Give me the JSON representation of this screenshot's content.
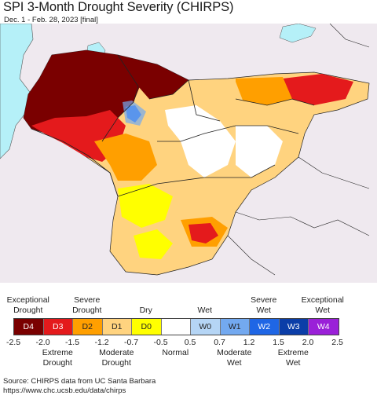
{
  "title": "SPI 3-Month Drought Severity (CHIRPS)",
  "subtitle": "Dec. 1 - Feb. 28, 2023 [final]",
  "legend": {
    "top_labels": [
      {
        "text": "Exceptional\nDrought",
        "at": 0
      },
      {
        "text": "Severe\nDrought",
        "at": 2
      },
      {
        "text": "Dry",
        "at": 4
      },
      {
        "text": "Wet",
        "at": 6
      },
      {
        "text": "Severe\nWet",
        "at": 8
      },
      {
        "text": "Exceptional\nWet",
        "at": 10
      }
    ],
    "bottom_labels": [
      {
        "text": "Extreme\nDrought",
        "at": 1
      },
      {
        "text": "Moderate\nDrought",
        "at": 3
      },
      {
        "text": "Normal",
        "at": 5
      },
      {
        "text": "Moderate\nWet",
        "at": 7
      },
      {
        "text": "Extreme\nWet",
        "at": 9
      }
    ],
    "classes": [
      {
        "code": "D4",
        "color": "#7a0000",
        "text_color": "#ffffff"
      },
      {
        "code": "D3",
        "color": "#e41a1c",
        "text_color": "#ffffff"
      },
      {
        "code": "D2",
        "color": "#ff9f00",
        "text_color": "#222222"
      },
      {
        "code": "D1",
        "color": "#ffd37f",
        "text_color": "#222222"
      },
      {
        "code": "D0",
        "color": "#ffff00",
        "text_color": "#222222"
      },
      {
        "code": "",
        "color": "#ffffff",
        "text_color": "#222222"
      },
      {
        "code": "W0",
        "color": "#b5d5f5",
        "text_color": "#222222"
      },
      {
        "code": "W1",
        "color": "#73a9f0",
        "text_color": "#222222"
      },
      {
        "code": "W2",
        "color": "#1f66e5",
        "text_color": "#ffffff"
      },
      {
        "code": "W3",
        "color": "#0b3ea8",
        "text_color": "#ffffff"
      },
      {
        "code": "W4",
        "color": "#9a20d8",
        "text_color": "#ffffff"
      }
    ],
    "ticks": [
      "-2.5",
      "-2.0",
      "-1.5",
      "-1.2",
      "-0.7",
      "-0.5",
      "0.5",
      "0.7",
      "1.2",
      "1.5",
      "2.0",
      "2.5"
    ]
  },
  "source": {
    "line1": "Source: CHIRPS data from UC Santa Barbara",
    "line2": "https://www.chc.ucsb.edu/data/chirps"
  },
  "colors": {
    "water": "#b5f0f8",
    "outside_region": "#efe9ef",
    "border": "#222222"
  }
}
